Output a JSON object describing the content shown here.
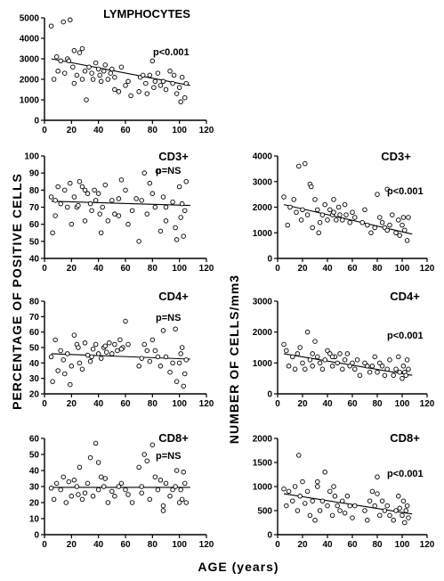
{
  "figure": {
    "left_ylabel": "PERCENTAGE  OF  POSITIVE  CELLS",
    "right_ylabel": "NUMBER  OF  CELLS/mm3",
    "xlabel": "AGE  (years)"
  },
  "chart_data": [
    {
      "id": "lymphocytes",
      "type": "scatter",
      "title": "LYMPHOCYTES",
      "annotation": "p<0.001",
      "xlim": [
        0,
        120
      ],
      "ylim": [
        0,
        5000
      ],
      "xticks": [
        0,
        20,
        40,
        60,
        80,
        100,
        120
      ],
      "yticks": [
        0,
        1000,
        2000,
        3000,
        4000,
        5000
      ],
      "trend": {
        "x": [
          5,
          108
        ],
        "y": [
          3000,
          1700
        ]
      },
      "x": [
        5,
        7,
        9,
        12,
        14,
        15,
        17,
        19,
        21,
        22,
        24,
        26,
        28,
        30,
        31,
        33,
        35,
        36,
        38,
        40,
        41,
        42,
        44,
        45,
        47,
        49,
        50,
        52,
        55,
        57,
        60,
        62,
        64,
        70,
        71,
        73,
        75,
        76,
        78,
        80,
        81,
        82,
        84,
        86,
        88,
        90,
        93,
        95,
        96,
        98,
        100,
        101,
        102,
        104,
        105,
        18,
        22,
        10,
        28,
        52
      ],
      "y": [
        4600,
        2000,
        3100,
        2900,
        4800,
        2300,
        3000,
        4900,
        2600,
        3400,
        2200,
        3300,
        3500,
        2400,
        1000,
        2600,
        2300,
        2000,
        2800,
        2500,
        2200,
        1900,
        2400,
        2700,
        2000,
        2300,
        2500,
        2100,
        1400,
        2600,
        1700,
        1900,
        1200,
        1400,
        2100,
        2200,
        1800,
        1300,
        2200,
        2900,
        1600,
        1900,
        2300,
        1700,
        1900,
        1500,
        2400,
        1800,
        2200,
        1300,
        1600,
        900,
        2100,
        1100,
        1800,
        2900,
        1800,
        2400,
        2000,
        1500
      ]
    },
    {
      "id": "cd3-percent",
      "type": "scatter",
      "title": "CD3+",
      "annotation": "p=NS",
      "xlim": [
        0,
        120
      ],
      "ylim": [
        40,
        100
      ],
      "xticks": [
        0,
        20,
        40,
        60,
        80,
        100,
        120
      ],
      "yticks": [
        40,
        50,
        60,
        70,
        80,
        90,
        100
      ],
      "trend": {
        "x": [
          5,
          108
        ],
        "y": [
          73.5,
          71
        ]
      },
      "x": [
        5,
        6,
        8,
        10,
        12,
        15,
        17,
        19,
        20,
        22,
        24,
        26,
        28,
        30,
        32,
        34,
        35,
        37,
        38,
        40,
        41,
        43,
        45,
        47,
        50,
        52,
        55,
        57,
        60,
        62,
        70,
        72,
        74,
        76,
        78,
        80,
        82,
        84,
        86,
        88,
        90,
        95,
        97,
        98,
        100,
        101,
        102,
        103,
        104,
        105,
        8,
        25,
        42,
        65,
        68,
        90,
        55,
        30
      ],
      "y": [
        76,
        55,
        65,
        82,
        72,
        80,
        70,
        84,
        60,
        76,
        70,
        85,
        82,
        62,
        78,
        72,
        68,
        80,
        74,
        78,
        66,
        70,
        83,
        62,
        74,
        66,
        75,
        86,
        80,
        60,
        50,
        74,
        90,
        66,
        84,
        78,
        70,
        91,
        56,
        76,
        62,
        73,
        58,
        51,
        82,
        64,
        72,
        53,
        68,
        85,
        74,
        71,
        55,
        68,
        75,
        70,
        65,
        80
      ]
    },
    {
      "id": "cd3-count",
      "type": "scatter",
      "title": "CD3+",
      "annotation": "p<0.001",
      "xlim": [
        0,
        120
      ],
      "ylim": [
        0,
        4000
      ],
      "xticks": [
        0,
        20,
        40,
        60,
        80,
        100,
        120
      ],
      "yticks": [
        0,
        1000,
        2000,
        3000,
        4000
      ],
      "trend": {
        "x": [
          5,
          108
        ],
        "y": [
          2100,
          950
        ]
      },
      "x": [
        5,
        8,
        10,
        13,
        15,
        17,
        19,
        20,
        22,
        24,
        26,
        28,
        30,
        32,
        34,
        36,
        38,
        40,
        42,
        44,
        45,
        47,
        49,
        50,
        52,
        55,
        58,
        60,
        62,
        68,
        70,
        72,
        75,
        78,
        80,
        82,
        84,
        86,
        88,
        90,
        92,
        95,
        97,
        98,
        100,
        101,
        102,
        104,
        105,
        27,
        33,
        54,
        45,
        88
      ],
      "y": [
        2400,
        1300,
        2000,
        2300,
        1800,
        3600,
        1500,
        1900,
        3700,
        1700,
        2900,
        1200,
        2300,
        1900,
        1400,
        1700,
        2100,
        1500,
        1900,
        1700,
        2300,
        1500,
        2000,
        1700,
        1500,
        1700,
        1400,
        1800,
        1600,
        1400,
        1900,
        1300,
        1000,
        1200,
        2500,
        1600,
        1400,
        1200,
        1100,
        1300,
        1700,
        1000,
        1500,
        900,
        1300,
        1600,
        1100,
        700,
        1600,
        2800,
        1000,
        2100,
        1800,
        2700
      ]
    },
    {
      "id": "cd4-percent",
      "type": "scatter",
      "title": "CD4+",
      "annotation": "p=NS",
      "xlim": [
        0,
        120
      ],
      "ylim": [
        20,
        80
      ],
      "xticks": [
        0,
        20,
        40,
        60,
        80,
        100,
        120
      ],
      "yticks": [
        20,
        30,
        40,
        50,
        60,
        70,
        80
      ],
      "trend": {
        "x": [
          5,
          108
        ],
        "y": [
          46,
          42.5
        ]
      },
      "x": [
        5,
        6,
        8,
        10,
        12,
        14,
        15,
        17,
        19,
        20,
        22,
        24,
        26,
        28,
        30,
        32,
        34,
        36,
        38,
        40,
        42,
        44,
        46,
        48,
        50,
        52,
        54,
        56,
        58,
        60,
        62,
        70,
        72,
        74,
        76,
        78,
        80,
        82,
        84,
        86,
        88,
        90,
        93,
        95,
        97,
        98,
        100,
        101,
        102,
        103,
        104,
        105,
        45,
        57,
        35,
        25
      ],
      "y": [
        44,
        28,
        55,
        35,
        48,
        42,
        33,
        46,
        26,
        38,
        58,
        52,
        40,
        36,
        53,
        45,
        41,
        49,
        52,
        46,
        43,
        50,
        47,
        53,
        46,
        52,
        48,
        55,
        50,
        67,
        52,
        38,
        43,
        52,
        48,
        41,
        55,
        48,
        44,
        38,
        61,
        44,
        34,
        40,
        62,
        28,
        40,
        46,
        50,
        25,
        33,
        42,
        51,
        49,
        44,
        50
      ]
    },
    {
      "id": "cd4-count",
      "type": "scatter",
      "title": "CD4+",
      "annotation": "p<0.001",
      "xlim": [
        0,
        120
      ],
      "ylim": [
        0,
        3000
      ],
      "xticks": [
        0,
        20,
        40,
        60,
        80,
        100,
        120
      ],
      "yticks": [
        0,
        1000,
        2000,
        3000
      ],
      "trend": {
        "x": [
          5,
          108
        ],
        "y": [
          1300,
          600
        ]
      },
      "x": [
        5,
        7,
        9,
        12,
        14,
        16,
        18,
        20,
        22,
        24,
        26,
        28,
        30,
        32,
        34,
        36,
        38,
        40,
        42,
        44,
        46,
        48,
        50,
        52,
        54,
        56,
        58,
        60,
        62,
        64,
        70,
        72,
        74,
        76,
        78,
        80,
        82,
        84,
        86,
        88,
        90,
        93,
        95,
        97,
        98,
        100,
        101,
        102,
        103,
        104,
        105,
        28,
        44,
        66
      ],
      "y": [
        1600,
        1400,
        900,
        1200,
        800,
        1300,
        1500,
        1000,
        800,
        2000,
        1100,
        900,
        1700,
        1200,
        1000,
        800,
        1100,
        1400,
        1300,
        900,
        1200,
        1000,
        1300,
        800,
        1100,
        1300,
        900,
        1000,
        800,
        1100,
        1000,
        900,
        700,
        900,
        1200,
        700,
        1000,
        900,
        600,
        800,
        1100,
        600,
        800,
        1200,
        700,
        500,
        900,
        700,
        600,
        1100,
        800,
        1300,
        1200,
        600
      ]
    },
    {
      "id": "cd8-percent",
      "type": "scatter",
      "title": "CD8+",
      "annotation": "p=NS",
      "xlim": [
        0,
        120
      ],
      "ylim": [
        0,
        60
      ],
      "xticks": [
        0,
        20,
        40,
        60,
        80,
        100,
        120
      ],
      "yticks": [
        0,
        10,
        20,
        30,
        40,
        50,
        60
      ],
      "trend": {
        "x": [
          5,
          108
        ],
        "y": [
          29.5,
          29.5
        ]
      },
      "x": [
        5,
        7,
        9,
        12,
        14,
        16,
        18,
        20,
        22,
        24,
        26,
        28,
        30,
        32,
        34,
        36,
        38,
        40,
        42,
        44,
        45,
        47,
        50,
        52,
        55,
        57,
        60,
        62,
        65,
        70,
        72,
        74,
        76,
        78,
        80,
        82,
        84,
        86,
        88,
        90,
        93,
        95,
        97,
        98,
        100,
        101,
        102,
        103,
        104,
        105,
        40,
        88,
        72,
        25
      ],
      "y": [
        29,
        22,
        32,
        28,
        36,
        20,
        33,
        24,
        34,
        30,
        42,
        22,
        26,
        32,
        48,
        24,
        57,
        28,
        36,
        30,
        35,
        20,
        27,
        24,
        30,
        32,
        28,
        25,
        20,
        42,
        30,
        50,
        46,
        22,
        56,
        36,
        28,
        34,
        15,
        32,
        24,
        28,
        30,
        40,
        20,
        28,
        22,
        39,
        32,
        20,
        45,
        18,
        26,
        25
      ]
    },
    {
      "id": "cd8-count",
      "type": "scatter",
      "title": "CD8+",
      "annotation": "p<0.001",
      "xlim": [
        0,
        120
      ],
      "ylim": [
        0,
        2000
      ],
      "xticks": [
        0,
        20,
        40,
        60,
        80,
        100,
        120
      ],
      "yticks": [
        0,
        500,
        1000,
        1500,
        2000
      ],
      "trend": {
        "x": [
          5,
          108
        ],
        "y": [
          850,
          430
        ]
      },
      "x": [
        5,
        7,
        9,
        12,
        14,
        16,
        18,
        20,
        22,
        24,
        26,
        28,
        30,
        32,
        34,
        36,
        38,
        40,
        42,
        44,
        46,
        48,
        50,
        52,
        54,
        56,
        58,
        60,
        62,
        70,
        72,
        74,
        76,
        78,
        80,
        82,
        84,
        86,
        88,
        90,
        93,
        95,
        97,
        98,
        100,
        101,
        102,
        103,
        104,
        105,
        17,
        45,
        32,
        80
      ],
      "y": [
        950,
        600,
        900,
        700,
        1000,
        500,
        800,
        1100,
        650,
        900,
        400,
        700,
        300,
        1000,
        500,
        700,
        1300,
        600,
        900,
        400,
        800,
        600,
        500,
        700,
        450,
        800,
        600,
        350,
        600,
        500,
        300,
        700,
        900,
        600,
        1200,
        400,
        700,
        500,
        600,
        400,
        300,
        500,
        800,
        550,
        400,
        700,
        250,
        500,
        600,
        350,
        1650,
        1000,
        1100,
        850
      ]
    }
  ]
}
